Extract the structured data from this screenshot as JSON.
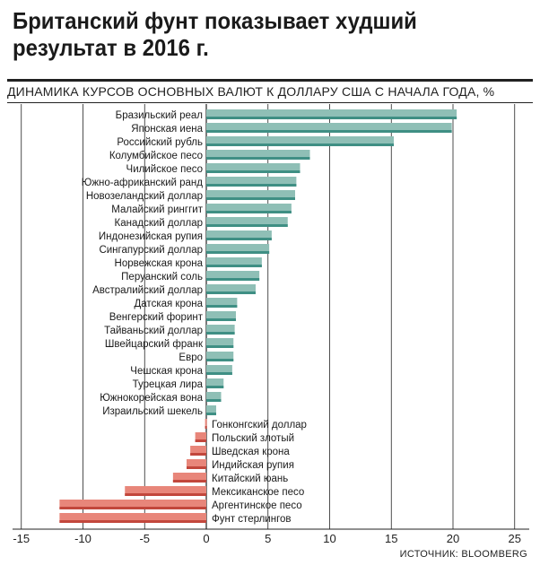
{
  "header": {
    "title": "Британский фунт показывает худший результат в 2016 г.",
    "subtitle": "ДИНАМИКА КУРСОВ ОСНОВНЫХ ВАЛЮТ К ДОЛЛАРУ США С НАЧАЛА ГОДА, %",
    "source": "ИСТОЧНИК: BLOOMBERG"
  },
  "colors": {
    "positive": "#8fbfb6",
    "positive_dark": "#3f8f84",
    "negative": "#e8867a",
    "negative_dark": "#c2473c",
    "grid": "#222222"
  },
  "chart_data": {
    "type": "bar",
    "orientation": "horizontal",
    "title": "Британский фунт показывает худший результат в 2016 г.",
    "subtitle": "ДИНАМИКА КУРСОВ ОСНОВНЫХ ВАЛЮТ К ДОЛЛАРУ США С НАЧАЛА ГОДА, %",
    "xlim": [
      -15,
      25
    ],
    "xticks": [
      -15,
      -10,
      -5,
      0,
      5,
      10,
      15,
      20,
      25
    ],
    "grid": true,
    "categories": [
      "Бразильский реал",
      "Японская иена",
      "Российский рубль",
      "Колумбийское песо",
      "Чилийское песо",
      "Южно-африканский ранд",
      "Новозеландский доллар",
      "Малайский ринггит",
      "Канадский доллар",
      "Индонезийская рупия",
      "Сингапурский доллар",
      "Норвежская крона",
      "Перуанский соль",
      "Австралийский доллар",
      "Датская крона",
      "Венгерский форинт",
      "Тайваньский доллар",
      "Швейцарский франк",
      "Евро",
      "Чешская крона",
      "Турецкая лира",
      "Южнокорейская вона",
      "Израильский шекель",
      "Гонконгский доллар",
      "Польский злотый",
      "Шведская крона",
      "Индийская рупия",
      "Китайский юань",
      "Мексиканское песо",
      "Аргентинское песо",
      "Фунт стерлингов"
    ],
    "values": [
      20.3,
      19.9,
      15.2,
      8.4,
      7.6,
      7.3,
      7.2,
      6.9,
      6.6,
      5.3,
      5.1,
      4.5,
      4.3,
      4.0,
      2.5,
      2.4,
      2.3,
      2.2,
      2.2,
      2.1,
      1.4,
      1.2,
      0.8,
      -0.1,
      -0.9,
      -1.3,
      -1.6,
      -2.7,
      -6.6,
      -11.9,
      -11.9
    ]
  }
}
